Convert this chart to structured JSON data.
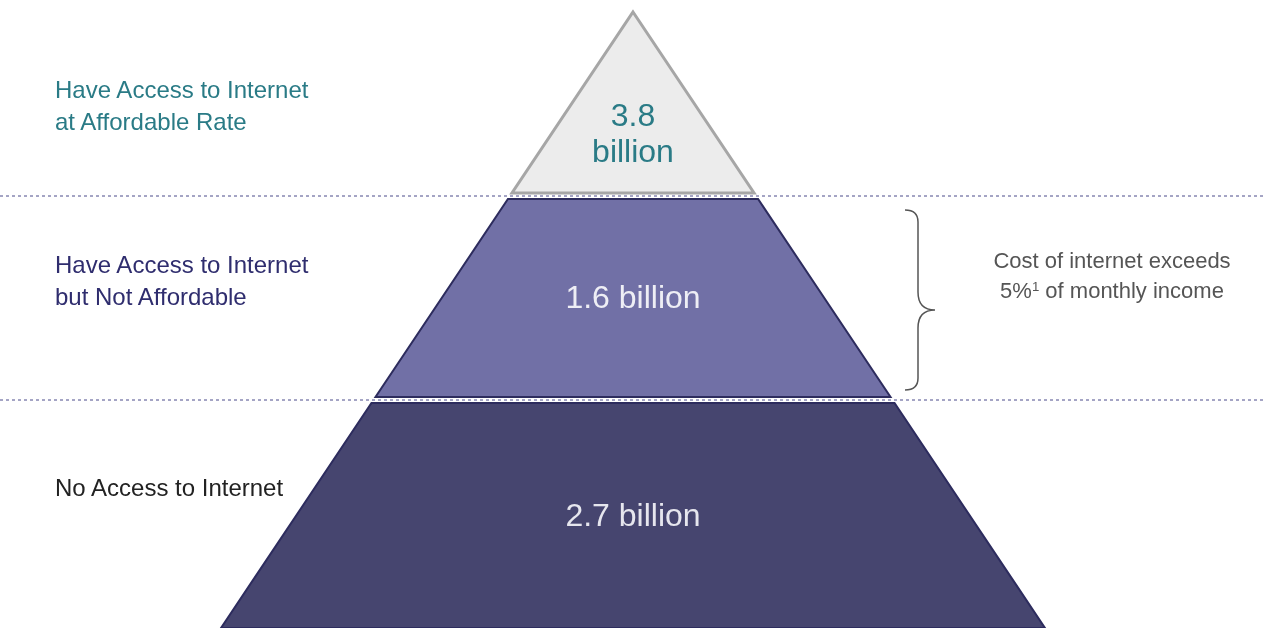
{
  "chart_data": {
    "type": "other",
    "categories": [
      "Have Access to Internet at Affordable Rate",
      "Have Access to Internet but Not Affordable",
      "No Access to Internet"
    ],
    "values": [
      3.8,
      1.6,
      2.7
    ],
    "value_labels": [
      "3.8 billion",
      "1.6 billion",
      "2.7 billion"
    ],
    "colors": [
      "#ececec",
      "#7170a6",
      "#46456f"
    ],
    "annotations": [
      "Cost of internet exceeds 5%$^{1}$ of monthly income"
    ]
  }
}
